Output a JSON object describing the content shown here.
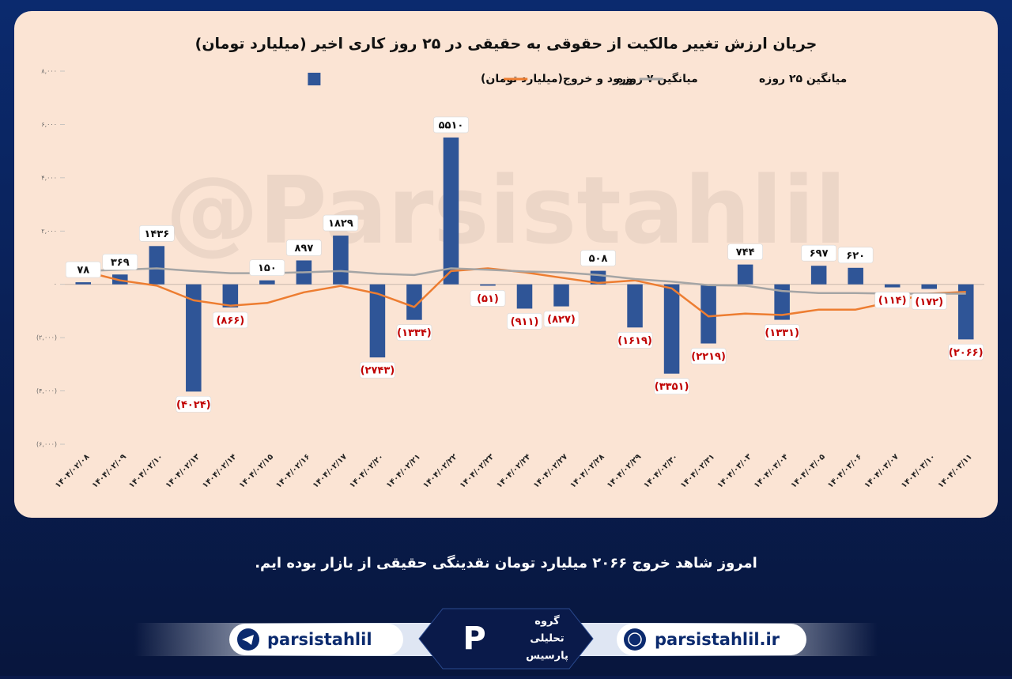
{
  "chart_data": {
    "type": "bar",
    "title": "جریان ارزش تغییر مالکیت از حقوقی به حقیقی در ۲۵ روز کاری اخیر (میلیارد تومان)",
    "categories": [
      "۱۴۰۴/۰۲/۰۸",
      "۱۴۰۴/۰۲/۰۹",
      "۱۴۰۴/۰۲/۱۰",
      "۱۴۰۴/۰۲/۱۳",
      "۱۴۰۴/۰۲/۱۴",
      "۱۴۰۴/۰۲/۱۵",
      "۱۴۰۴/۰۲/۱۶",
      "۱۴۰۴/۰۲/۱۷",
      "۱۴۰۴/۰۲/۲۰",
      "۱۴۰۴/۰۲/۲۱",
      "۱۴۰۴/۰۲/۲۲",
      "۱۴۰۴/۰۲/۲۳",
      "۱۴۰۴/۰۲/۲۴",
      "۱۴۰۴/۰۲/۲۷",
      "۱۴۰۴/۰۲/۲۸",
      "۱۴۰۴/۰۲/۲۹",
      "۱۴۰۴/۰۲/۳۰",
      "۱۴۰۴/۰۲/۳۱",
      "۱۴۰۴/۰۳/۰۳",
      "۱۴۰۴/۰۳/۰۴",
      "۱۴۰۴/۰۳/۰۵",
      "۱۴۰۴/۰۳/۰۶",
      "۱۴۰۴/۰۳/۰۷",
      "۱۴۰۴/۰۳/۱۰",
      "۱۴۰۴/۰۳/۱۱"
    ],
    "series": [
      {
        "name": "ورود و خروج(میلیارد تومان)",
        "type": "bar",
        "color": "#2f5597",
        "values": [
          78,
          369,
          1436,
          -4024,
          -866,
          150,
          897,
          1829,
          -2743,
          -1334,
          5510,
          -51,
          -911,
          -827,
          508,
          -1619,
          -3351,
          -2219,
          744,
          -1331,
          697,
          620,
          -114,
          -172,
          -2066
        ],
        "value_labels": [
          "۷۸",
          "۳۶۹",
          "۱۴۳۶",
          "(۴۰۲۴)",
          "(۸۶۶)",
          "۱۵۰",
          "۸۹۷",
          "۱۸۲۹",
          "(۲۷۴۳)",
          "(۱۳۳۴)",
          "۵۵۱۰",
          "(۵۱)",
          "(۹۱۱)",
          "(۸۲۷)",
          "۵۰۸",
          "(۱۶۱۹)",
          "(۳۳۵۱)",
          "(۲۲۱۹)",
          "۷۴۴",
          "(۱۳۳۱)",
          "۶۹۷",
          "۶۲۰",
          "(۱۱۴)",
          "(۱۷۲)",
          "(۲۰۶۶)"
        ]
      },
      {
        "name": "میانگین ۷ روزه",
        "type": "line",
        "color": "#ed7d31",
        "values": [
          500,
          150,
          -50,
          -600,
          -800,
          -700,
          -300,
          -60,
          -350,
          -850,
          500,
          600,
          450,
          250,
          50,
          150,
          -150,
          -1200,
          -1100,
          -1150,
          -950,
          -950,
          -650,
          -350,
          -280
        ]
      },
      {
        "name": "میانگین ۲۵ روزه",
        "type": "line",
        "color": "#a5a5a5",
        "values": [
          500,
          550,
          600,
          500,
          420,
          420,
          450,
          500,
          400,
          350,
          600,
          550,
          480,
          450,
          350,
          200,
          100,
          -30,
          -50,
          -250,
          -330,
          -330,
          -350,
          -350,
          -350
        ]
      }
    ],
    "ylim": [
      -6000,
      8000
    ],
    "yticks": [
      {
        "value": 8000,
        "label": "۸,۰۰۰"
      },
      {
        "value": 6000,
        "label": "۶,۰۰۰"
      },
      {
        "value": 4000,
        "label": "۴,۰۰۰"
      },
      {
        "value": 2000,
        "label": "۲,۰۰۰"
      },
      {
        "value": 0,
        "label": "۰"
      },
      {
        "value": -2000,
        "label": "(۲,۰۰۰)"
      },
      {
        "value": -4000,
        "label": "(۴,۰۰۰)"
      },
      {
        "value": -6000,
        "label": "(۶,۰۰۰)"
      }
    ],
    "grid": false
  },
  "watermark": "@Parsistahlil",
  "caption": "امروز شاهد خروج ۲۰۶۶ میلیارد تومان نقدینگی حقیقی از بازار بوده ایم.",
  "footer": {
    "telegram": "parsistahlil",
    "logo": [
      "گروه",
      "تحلیلی",
      "پارسیس"
    ],
    "website": "parsistahlil.ir"
  }
}
